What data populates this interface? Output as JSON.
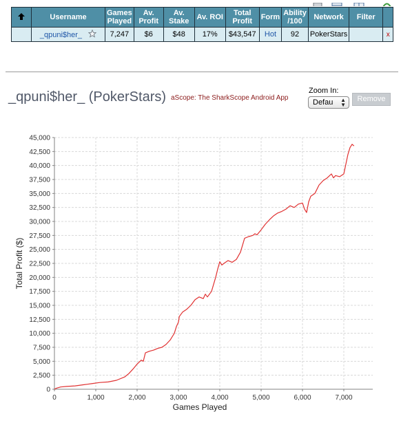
{
  "table": {
    "headers": [
      "Username",
      "Games Played",
      "Av. Profit",
      "Av. Stake",
      "Av. ROI",
      "Total Profit",
      "Form",
      "Ability /100",
      "Network",
      "Filter"
    ],
    "header_lines": {
      "username": "Username",
      "games": [
        "Games",
        "Played"
      ],
      "avprofit": [
        "Av.",
        "Profit"
      ],
      "avstake": [
        "Av.",
        "Stake"
      ],
      "avroi": "Av. ROI",
      "totalprofit": [
        "Total",
        "Profit"
      ],
      "form": "Form",
      "ability": [
        "Ability",
        "/100"
      ],
      "network": "Network",
      "filter": "Filter"
    },
    "row": {
      "username": "_qpuni$her_",
      "games_played": "7,247",
      "av_profit": "$6",
      "av_stake": "$48",
      "av_roi": "17%",
      "total_profit": "$43,547",
      "form": "Hot",
      "ability": "92",
      "network": "PokerStars",
      "filter": "",
      "remove": "x"
    }
  },
  "player_title": "_qpuni$her_ (PokerStars)",
  "app_link": "aScope: The SharkScope Android App",
  "zoom": {
    "label": "Zoom In:",
    "selected": "Defau"
  },
  "remove_button": "Remove",
  "colors": {
    "header_bg": "#4f8fa6",
    "row_bg": "#d9ecf2",
    "line": "#e03030",
    "link": "#1f56a7"
  },
  "icons": {
    "sort": "sort-up-arrow-icon",
    "star": "favorite-star-icon"
  },
  "chart_data": {
    "type": "line",
    "xlabel": "Games Played",
    "ylabel": "Total Profit ($)",
    "xlim": [
      0,
      7700
    ],
    "ylim": [
      0,
      45000
    ],
    "x_ticks": [
      0,
      1000,
      2000,
      3000,
      4000,
      5000,
      6000,
      7000
    ],
    "x_tick_labels": [
      "0",
      "1,000",
      "2,000",
      "3,000",
      "4,000",
      "5,000",
      "6,000",
      "7,000"
    ],
    "y_ticks": [
      0,
      2500,
      5000,
      7500,
      10000,
      12500,
      15000,
      17500,
      20000,
      22500,
      25000,
      27500,
      30000,
      32500,
      35000,
      37500,
      40000,
      42500,
      45000
    ],
    "y_tick_labels": [
      "0",
      "2,500",
      "5,000",
      "7,500",
      "10,000",
      "12,500",
      "15,000",
      "17,500",
      "20,000",
      "22,500",
      "25,000",
      "27,500",
      "30,000",
      "32,500",
      "35,000",
      "37,500",
      "40,000",
      "42,500",
      "45,000"
    ],
    "grid": true,
    "series": [
      {
        "x": [
          0,
          50,
          150,
          300,
          500,
          700,
          900,
          1100,
          1300,
          1500,
          1700,
          1800,
          1900,
          2000,
          2100,
          2150,
          2200,
          2300,
          2400,
          2500,
          2600,
          2700,
          2800,
          2900,
          2950,
          3000,
          3020,
          3100,
          3200,
          3300,
          3400,
          3500,
          3600,
          3650,
          3700,
          3800,
          3900,
          3950,
          4000,
          4050,
          4100,
          4200,
          4300,
          4400,
          4500,
          4600,
          4700,
          4800,
          4850,
          4900,
          5000,
          5100,
          5200,
          5300,
          5400,
          5500,
          5600,
          5700,
          5800,
          5900,
          6000,
          6050,
          6100,
          6150,
          6200,
          6300,
          6400,
          6500,
          6600,
          6700,
          6750,
          6800,
          6900,
          7000,
          7100,
          7150,
          7200,
          7247
        ],
        "y": [
          0,
          200,
          400,
          500,
          600,
          800,
          1000,
          1200,
          1300,
          1600,
          2200,
          2800,
          3600,
          4500,
          5200,
          5000,
          6500,
          6800,
          7000,
          7300,
          7500,
          8000,
          8800,
          10000,
          11200,
          12000,
          13000,
          13800,
          14300,
          15000,
          16000,
          16500,
          16200,
          17000,
          16500,
          17500,
          20000,
          21500,
          22800,
          22200,
          22500,
          23000,
          22700,
          23200,
          24500,
          27000,
          27300,
          27500,
          27800,
          27600,
          28500,
          29500,
          30300,
          31000,
          31500,
          31800,
          32200,
          32800,
          32500,
          33100,
          33300,
          32200,
          31600,
          33500,
          34500,
          35000,
          36500,
          37300,
          37800,
          38500,
          37800,
          38200,
          38000,
          38500,
          42000,
          43200,
          43800,
          43500
        ],
        "color": "#e03030"
      }
    ]
  }
}
